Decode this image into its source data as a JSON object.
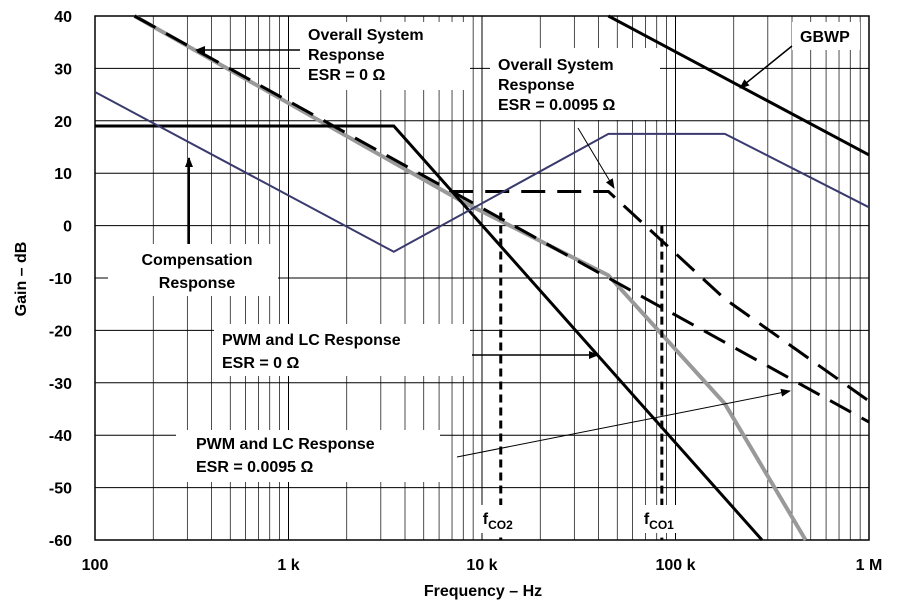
{
  "chart_data": {
    "type": "line",
    "xlabel": "Frequency – Hz",
    "ylabel": "Gain – dB",
    "xscale": "log",
    "xlim": [
      100,
      1000000
    ],
    "ylim": [
      -60,
      40
    ],
    "grid": true,
    "x_ticks": [
      {
        "value": 100,
        "label": "100"
      },
      {
        "value": 1000,
        "label": "1 k"
      },
      {
        "value": 10000,
        "label": "10 k"
      },
      {
        "value": 100000,
        "label": "100 k"
      },
      {
        "value": 1000000,
        "label": "1 M"
      }
    ],
    "y_ticks": [
      40,
      30,
      20,
      10,
      0,
      -10,
      -20,
      -30,
      -40,
      -50,
      -60
    ],
    "y_tick_labels": [
      "40",
      "30",
      "20",
      "10",
      "0",
      "-10",
      "-20",
      "-30",
      "-40",
      "-50",
      "-60"
    ],
    "series": [
      {
        "name": "Overall System Response ESR = 0 Ω",
        "color": "#999999",
        "style": "solid",
        "x": [
          160,
          8000,
          45000,
          180000,
          470000
        ],
        "y": [
          40,
          4.5,
          -9.5,
          -34,
          -60
        ]
      },
      {
        "name": "Overall System Response ESR = 0.0095 Ω",
        "color": "#000000",
        "style": "dashed",
        "x": [
          160,
          7000,
          45000,
          180000,
          1000000
        ],
        "y": [
          40,
          6.5,
          6.5,
          -14,
          -33.5
        ]
      },
      {
        "name": "PWM and LC Response ESR = 0 Ω",
        "color": "#000000",
        "style": "solid",
        "x": [
          100,
          3500,
          280000
        ],
        "y": [
          19,
          19,
          -60
        ]
      },
      {
        "name": "PWM and LC Response ESR = 0.0095 Ω",
        "color": "#000000",
        "style": "dashed",
        "x": [
          7000,
          1000000
        ],
        "y": [
          6.5,
          -37.5
        ]
      },
      {
        "name": "Compensation Response",
        "color": "#3a3a6e",
        "style": "solid",
        "x": [
          100,
          3500,
          45000,
          180000,
          1000000
        ],
        "y": [
          25.5,
          -5,
          17.5,
          17.5,
          3.5
        ]
      },
      {
        "name": "GBWP",
        "color": "#000000",
        "style": "solid",
        "x": [
          45000,
          1000000
        ],
        "y": [
          40,
          13.5
        ]
      }
    ],
    "markers": [
      {
        "label_main": "f",
        "label_sub": "CO2",
        "x": 12500,
        "y_top": 2.5
      },
      {
        "label_main": "f",
        "label_sub": "CO1",
        "x": 85000,
        "y_top": 0
      }
    ],
    "annotations": [
      {
        "lines": [
          "Overall System",
          "Response",
          "ESR = 0 Ω"
        ]
      },
      {
        "lines": [
          "Overall System",
          "Response",
          "ESR = 0.0095 Ω"
        ]
      },
      {
        "lines": [
          "GBWP"
        ]
      },
      {
        "lines": [
          "Compensation",
          "Response"
        ]
      },
      {
        "lines": [
          "PWM and LC Response",
          "ESR = 0 Ω"
        ]
      },
      {
        "lines": [
          "PWM and LC Response",
          "ESR = 0.0095 Ω"
        ]
      }
    ]
  }
}
